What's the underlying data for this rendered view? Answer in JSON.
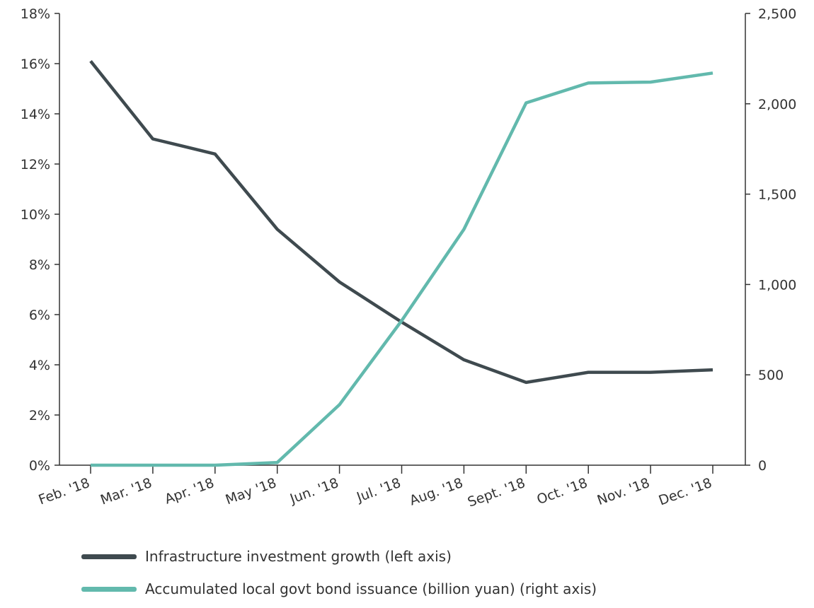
{
  "chart_data": {
    "type": "line",
    "title": "",
    "categories": [
      "Feb. '18",
      "Mar. '18",
      "Apr. '18",
      "May '18",
      "Jun. '18",
      "Jul. '18",
      "Aug. '18",
      "Sept. '18",
      "Oct. '18",
      "Nov. '18",
      "Dec. '18"
    ],
    "left_axis": {
      "ticks": [
        "0%",
        "2%",
        "4%",
        "6%",
        "8%",
        "10%",
        "12%",
        "14%",
        "16%",
        "18%"
      ],
      "ylim": [
        0,
        18
      ],
      "unit": "%"
    },
    "right_axis": {
      "ticks": [
        "0",
        "500",
        "1,000",
        "1,500",
        "2,000",
        "2,500"
      ],
      "ylim": [
        0,
        2500
      ]
    },
    "grid": false,
    "legend_position": "bottom",
    "series": [
      {
        "name": "Infrastructure investment growth (left axis)",
        "axis": "left",
        "color": "#3f4a4f",
        "values": [
          16.1,
          13.0,
          12.4,
          9.4,
          7.3,
          5.7,
          4.2,
          3.3,
          3.7,
          3.7,
          3.8
        ]
      },
      {
        "name": "Accumulated local govt bond issuance (billion yuan) (right axis)",
        "axis": "right",
        "color": "#62b9ad",
        "values": [
          0,
          0,
          0,
          15,
          335,
          800,
          1305,
          2005,
          2115,
          2120,
          2170
        ]
      }
    ]
  }
}
